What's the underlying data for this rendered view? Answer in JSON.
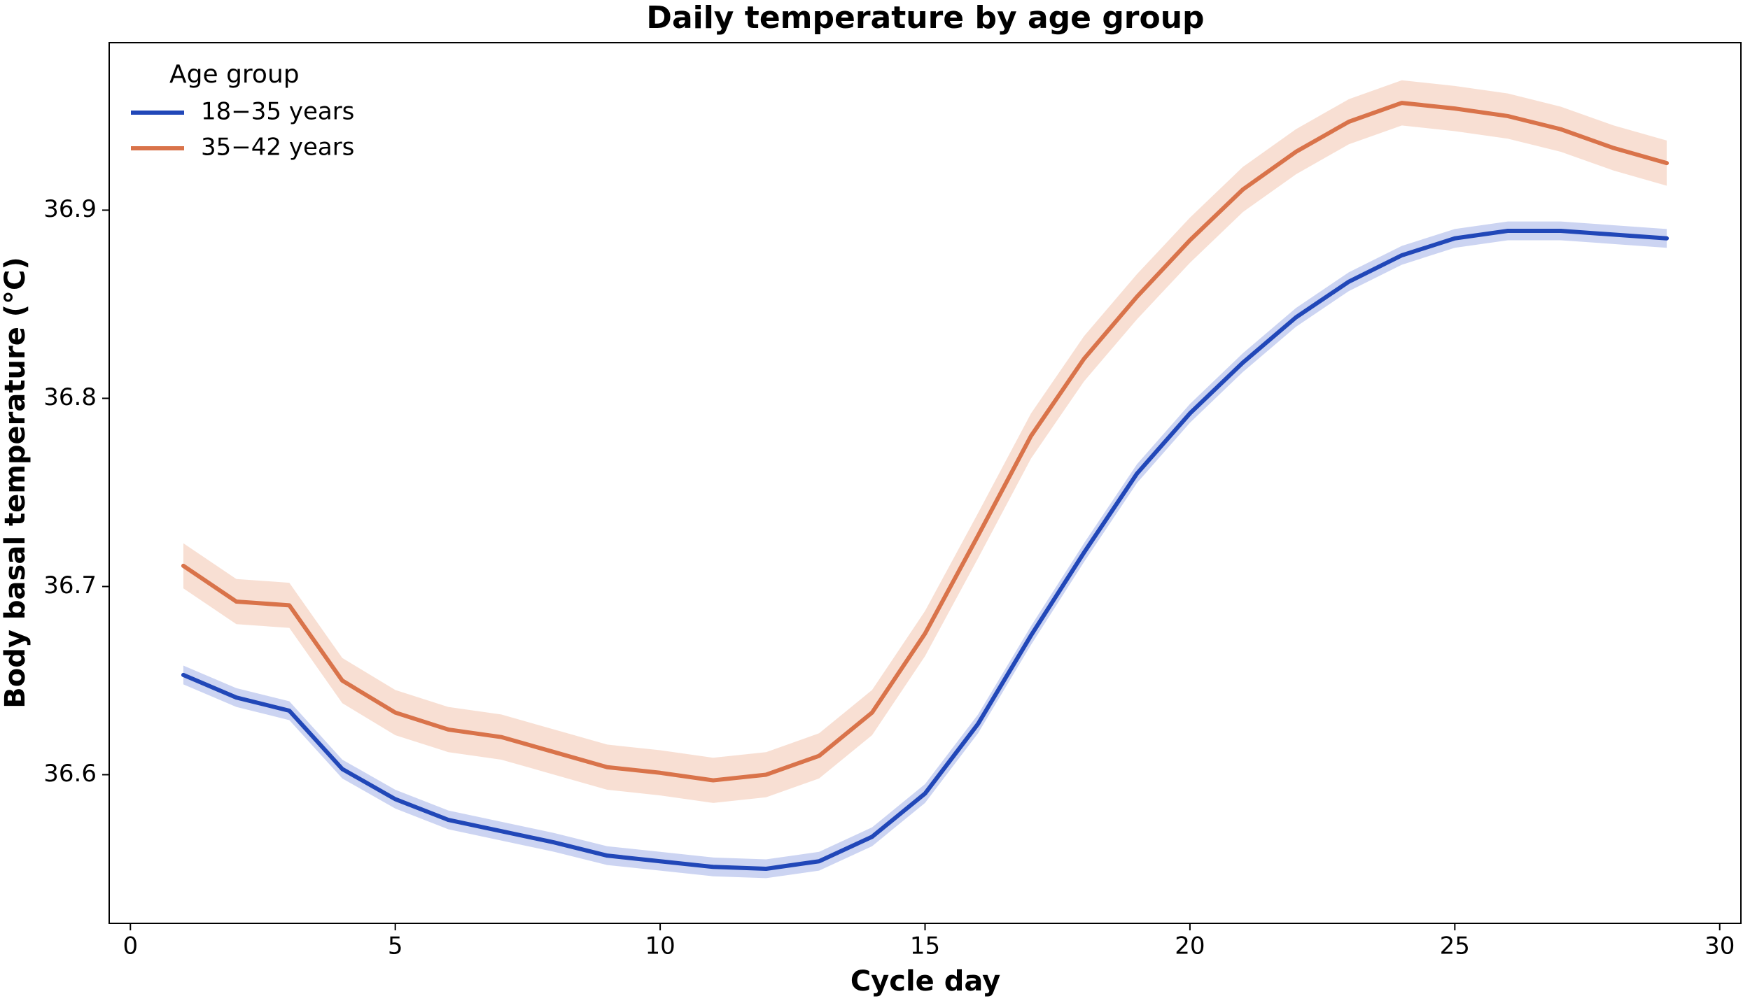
{
  "chart_data": {
    "type": "line",
    "title": "Daily temperature by age group",
    "x_label": "Cycle day",
    "y_label": "Body basal temperature (°C)",
    "legend_title": "Age group",
    "legend": "upper left",
    "x": [
      1,
      2,
      3,
      4,
      5,
      6,
      7,
      8,
      9,
      10,
      11,
      12,
      13,
      14,
      15,
      16,
      17,
      18,
      19,
      20,
      21,
      22,
      23,
      24,
      25,
      26,
      27,
      28,
      29
    ],
    "series": [
      {
        "name": "18−35 years",
        "color": "#2147b8",
        "band_color": "#c3cdf0",
        "band": 0.005,
        "values": [
          36.653,
          36.641,
          36.634,
          36.603,
          36.587,
          36.576,
          36.57,
          36.564,
          36.557,
          36.554,
          36.551,
          36.55,
          36.554,
          36.567,
          36.59,
          36.627,
          36.674,
          36.718,
          36.76,
          36.792,
          36.819,
          36.843,
          36.862,
          36.876,
          36.885,
          36.889,
          36.889,
          36.887,
          36.885
        ]
      },
      {
        "name": "35−42 years",
        "color": "#d9734a",
        "band_color": "#f7d9cb",
        "band": 0.012,
        "values": [
          36.711,
          36.692,
          36.69,
          36.65,
          36.633,
          36.624,
          36.62,
          36.612,
          36.604,
          36.601,
          36.597,
          36.6,
          36.61,
          36.633,
          36.675,
          36.727,
          36.78,
          36.821,
          36.854,
          36.884,
          36.911,
          36.931,
          36.947,
          36.957,
          36.954,
          36.95,
          36.943,
          36.933,
          36.925
        ]
      }
    ],
    "xlim": [
      -0.4,
      30.4
    ],
    "xticks": [
      0,
      5,
      10,
      15,
      20,
      25,
      30
    ],
    "ylim": [
      36.521,
      36.989
    ],
    "yticks": [
      36.6,
      36.7,
      36.8,
      36.9
    ]
  }
}
